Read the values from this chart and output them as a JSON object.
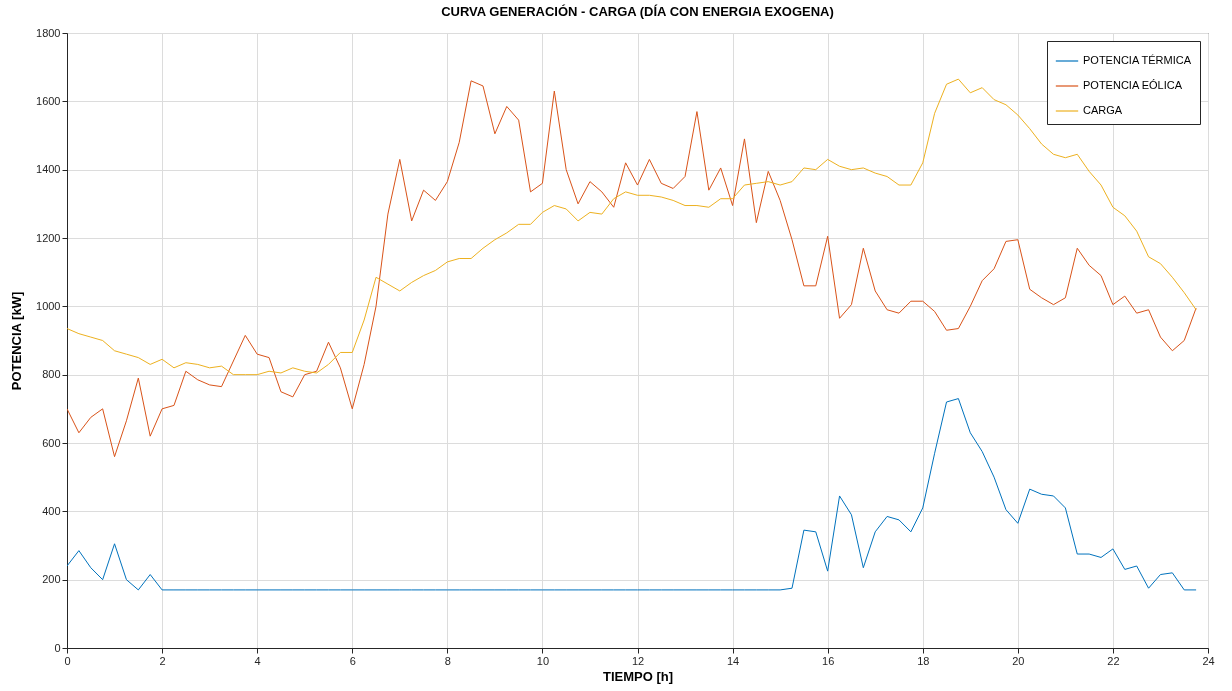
{
  "chart_data": {
    "type": "line",
    "title": "CURVA GENERACIÓN - CARGA (DÍA CON ENERGIA EXOGENA)",
    "xlabel": "TIEMPO [h]",
    "ylabel": "POTENCIA [kW]",
    "x": [
      0,
      0.25,
      0.5,
      0.75,
      1,
      1.25,
      1.5,
      1.75,
      2,
      2.25,
      2.5,
      2.75,
      3,
      3.25,
      3.5,
      3.75,
      4,
      4.25,
      4.5,
      4.75,
      5,
      5.25,
      5.5,
      5.75,
      6,
      6.25,
      6.5,
      6.75,
      7,
      7.25,
      7.5,
      7.75,
      8,
      8.25,
      8.5,
      8.75,
      9,
      9.25,
      9.5,
      9.75,
      10,
      10.25,
      10.5,
      10.75,
      11,
      11.25,
      11.5,
      11.75,
      12,
      12.25,
      12.5,
      12.75,
      13,
      13.25,
      13.5,
      13.75,
      14,
      14.25,
      14.5,
      14.75,
      15,
      15.25,
      15.5,
      15.75,
      16,
      16.25,
      16.5,
      16.75,
      17,
      17.25,
      17.5,
      17.75,
      18,
      18.25,
      18.5,
      18.75,
      19,
      19.25,
      19.5,
      19.75,
      20,
      20.25,
      20.5,
      20.75,
      21,
      21.25,
      21.5,
      21.75,
      22,
      22.25,
      22.5,
      22.75,
      23,
      23.25,
      23.5,
      23.75
    ],
    "series": [
      {
        "name": "POTENCIA TÉRMICA",
        "color": "#0072bd",
        "values": [
          240,
          285,
          235,
          200,
          305,
          200,
          170,
          215,
          170,
          170,
          170,
          170,
          170,
          170,
          170,
          170,
          170,
          170,
          170,
          170,
          170,
          170,
          170,
          170,
          170,
          170,
          170,
          170,
          170,
          170,
          170,
          170,
          170,
          170,
          170,
          170,
          170,
          170,
          170,
          170,
          170,
          170,
          170,
          170,
          170,
          170,
          170,
          170,
          170,
          170,
          170,
          170,
          170,
          170,
          170,
          170,
          170,
          170,
          170,
          170,
          170,
          175,
          345,
          340,
          225,
          445,
          390,
          235,
          340,
          385,
          375,
          340,
          410,
          570,
          720,
          730,
          630,
          575,
          500,
          405,
          365,
          465,
          450,
          445,
          410,
          275,
          275,
          265,
          290,
          230,
          240,
          175,
          215,
          220,
          170,
          170
        ]
      },
      {
        "name": "POTENCIA EÓLICA",
        "color": "#d95319",
        "values": [
          700,
          630,
          675,
          700,
          560,
          665,
          790,
          620,
          700,
          710,
          810,
          785,
          770,
          765,
          840,
          915,
          860,
          850,
          750,
          735,
          800,
          810,
          895,
          820,
          700,
          830,
          1000,
          1270,
          1430,
          1250,
          1340,
          1310,
          1365,
          1480,
          1660,
          1645,
          1505,
          1585,
          1545,
          1335,
          1360,
          1630,
          1400,
          1300,
          1365,
          1335,
          1290,
          1420,
          1355,
          1430,
          1360,
          1345,
          1380,
          1570,
          1340,
          1405,
          1295,
          1490,
          1245,
          1395,
          1310,
          1195,
          1060,
          1060,
          1205,
          965,
          1005,
          1170,
          1045,
          990,
          980,
          1015,
          1015,
          985,
          930,
          935,
          1000,
          1075,
          1110,
          1190,
          1195,
          1050,
          1025,
          1005,
          1025,
          1170,
          1120,
          1090,
          1005,
          1030,
          980,
          990,
          910,
          870,
          900,
          995
        ]
      },
      {
        "name": "CARGA",
        "color": "#edb120",
        "values": [
          935,
          920,
          910,
          900,
          870,
          860,
          850,
          830,
          845,
          820,
          835,
          830,
          820,
          825,
          800,
          800,
          800,
          810,
          805,
          820,
          810,
          805,
          830,
          865,
          865,
          960,
          1085,
          1065,
          1045,
          1070,
          1090,
          1105,
          1130,
          1140,
          1140,
          1170,
          1195,
          1215,
          1240,
          1240,
          1275,
          1295,
          1285,
          1250,
          1275,
          1270,
          1315,
          1335,
          1325,
          1325,
          1320,
          1310,
          1295,
          1295,
          1290,
          1315,
          1315,
          1355,
          1360,
          1365,
          1355,
          1365,
          1405,
          1400,
          1430,
          1410,
          1400,
          1405,
          1390,
          1380,
          1355,
          1355,
          1420,
          1565,
          1650,
          1665,
          1625,
          1640,
          1605,
          1590,
          1560,
          1520,
          1475,
          1445,
          1435,
          1445,
          1395,
          1355,
          1290,
          1265,
          1220,
          1145,
          1125,
          1085,
          1040,
          990
        ]
      }
    ],
    "xlim": [
      0,
      24
    ],
    "xticks": [
      0,
      2,
      4,
      6,
      8,
      10,
      12,
      14,
      16,
      18,
      20,
      22,
      24
    ],
    "ylim": [
      0,
      1800
    ],
    "yticks": [
      0,
      200,
      400,
      600,
      800,
      1000,
      1200,
      1400,
      1600,
      1800
    ],
    "grid": true,
    "legend": "top right"
  }
}
